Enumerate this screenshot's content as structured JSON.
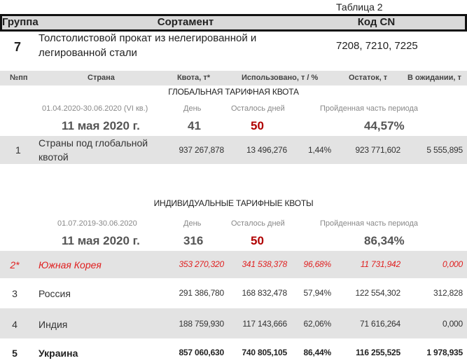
{
  "table_label": "Таблица 2",
  "header": {
    "group": "Группа",
    "assortment": "Сортамент",
    "cn_code": "Код CN"
  },
  "product": {
    "group": "7",
    "assortment_line1": "Толстолистовой прокат из нелегированной и",
    "assortment_line2": "легированной стали",
    "cn_code": "7208, 7210, 7225"
  },
  "columns": {
    "num": "№пп",
    "country": "Страна",
    "quota": "Квота, т*",
    "used": "Использовано, т / %",
    "remaining": "Остаток, т",
    "pending": "В ожидании, т"
  },
  "global": {
    "title": "ГЛОБАЛЬНАЯ ТАРИФНАЯ КВОТА",
    "period": "01.04.2020-30.06.2020 (VI кв.)",
    "day_label": "День",
    "left_label": "Осталось дней",
    "passed_label": "Пройденная часть периода",
    "date": "11 мая 2020 г.",
    "day": "41",
    "left": "50",
    "passed": "44,57%",
    "row": {
      "num": "1",
      "country_line1": "Страны под глобальной",
      "country_line2": "квотой",
      "quota": "937 267,878",
      "used": "13 496,276",
      "pct": "1,44%",
      "remaining": "923 771,602",
      "pending": "5 555,895"
    }
  },
  "individual": {
    "title": "ИНДИВИДУАЛЬНЫЕ ТАРИФНЫЕ КВОТЫ",
    "period": "01.07.2019-30.06.2020",
    "day_label": "День",
    "left_label": "Осталось дней",
    "passed_label": "Пройденная часть периода",
    "date": "11 мая 2020 г.",
    "day": "316",
    "left": "50",
    "passed": "86,34%",
    "rows": [
      {
        "num": "2*",
        "country": "Южная Корея",
        "quota": "353 270,320",
        "used": "341 538,378",
        "pct": "96,68%",
        "remaining": "11 731,942",
        "pending": "0,000"
      },
      {
        "num": "3",
        "country": "Россия",
        "quota": "291 386,780",
        "used": "168 832,478",
        "pct": "57,94%",
        "remaining": "122 554,302",
        "pending": "312,828"
      },
      {
        "num": "4",
        "country": "Индия",
        "quota": "188 759,930",
        "used": "117 143,666",
        "pct": "62,06%",
        "remaining": "71 616,264",
        "pending": "0,000"
      },
      {
        "num": "5",
        "country": "Украина",
        "quota": "857 060,630",
        "used": "740 805,105",
        "pct": "86,44%",
        "remaining": "116 255,525",
        "pending": "1 978,935"
      }
    ]
  },
  "colors": {
    "highlight_red": "#e02020",
    "days_left": "#b00000",
    "band": "#e3e3e3"
  }
}
